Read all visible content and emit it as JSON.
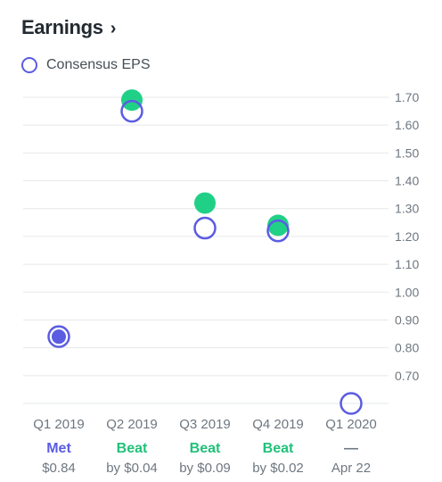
{
  "header": {
    "title": "Earnings",
    "chevron": "›"
  },
  "legend": {
    "label": "Consensus EPS"
  },
  "colors": {
    "estimate": "#5b5ce2",
    "actual": "#21d087",
    "grid": "#e6e8eb",
    "met": "#5b5ce2",
    "beat": "#21c17a",
    "neutral": "#6e7780"
  },
  "chart_data": {
    "type": "scatter",
    "categories": [
      "Q1 2019",
      "Q2 2019",
      "Q3 2019",
      "Q4 2019",
      "Q1 2020"
    ],
    "series": [
      {
        "name": "Consensus EPS",
        "values": [
          0.84,
          1.65,
          1.23,
          1.22,
          0.6
        ]
      },
      {
        "values": [
          0.84,
          1.69,
          1.32,
          1.24,
          null
        ]
      }
    ],
    "ylim": [
      0.6,
      1.7
    ],
    "yticks": [
      "1.70",
      "1.60",
      "1.50",
      "1.40",
      "1.30",
      "1.20",
      "1.10",
      "1.00",
      "0.90",
      "0.80",
      "0.70"
    ],
    "grid": true,
    "results": [
      {
        "status": "Met",
        "detail": "$0.84",
        "kind": "met"
      },
      {
        "status": "Beat",
        "detail": "by $0.04",
        "kind": "beat"
      },
      {
        "status": "Beat",
        "detail": "by $0.09",
        "kind": "beat"
      },
      {
        "status": "Beat",
        "detail": "by $0.02",
        "kind": "beat"
      },
      {
        "status": "—",
        "detail": "Apr 22",
        "kind": "neutral"
      }
    ]
  }
}
